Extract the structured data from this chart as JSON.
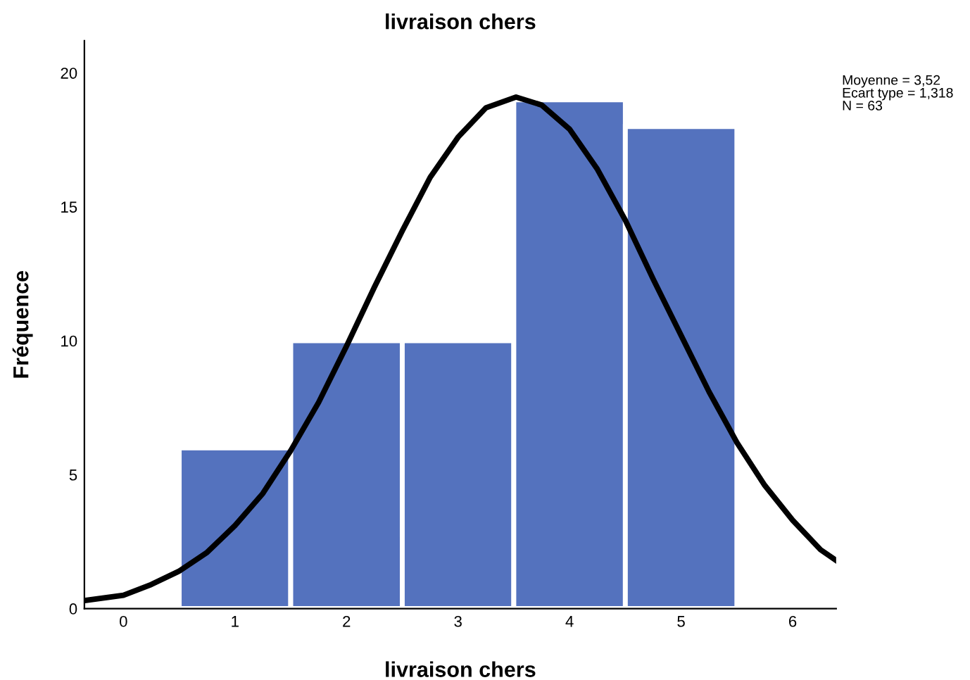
{
  "chart_data": {
    "type": "histogram",
    "title": "livraison chers",
    "xlabel": "livraison chers",
    "ylabel": "Fréquence",
    "bins": [
      0.5,
      1.5,
      2.5,
      3.5,
      4.5,
      5.5
    ],
    "values": [
      6,
      10,
      10,
      19,
      18
    ],
    "color": "#5472be",
    "series": [
      {
        "type": "line",
        "color": "#000000",
        "x": [
          -0.35,
          0,
          0.25,
          0.5,
          0.75,
          1,
          1.25,
          1.5,
          1.75,
          2,
          2.25,
          2.5,
          2.75,
          3,
          3.25,
          3.52,
          3.75,
          4,
          4.25,
          4.5,
          4.75,
          5,
          5.25,
          5.5,
          5.75,
          6,
          6.25,
          6.39
        ],
        "values": [
          0.3,
          0.5,
          0.9,
          1.4,
          2.1,
          3.1,
          4.3,
          5.9,
          7.7,
          9.8,
          12.0,
          14.1,
          16.1,
          17.6,
          18.7,
          19.1,
          18.8,
          17.9,
          16.4,
          14.5,
          12.3,
          10.2,
          8.1,
          6.2,
          4.6,
          3.3,
          2.2,
          1.8
        ]
      }
    ],
    "xlim": [
      -0.35,
      6.39
    ],
    "xticks": [
      0,
      1,
      2,
      3,
      4,
      5,
      6
    ],
    "ylim": [
      0,
      21.2
    ],
    "yticks": [
      0,
      5,
      10,
      15,
      20
    ],
    "grid": false,
    "legend": false,
    "annotations": [
      "Moyenne = 3,52\nEcart type = 1,318\nN = 63"
    ]
  }
}
